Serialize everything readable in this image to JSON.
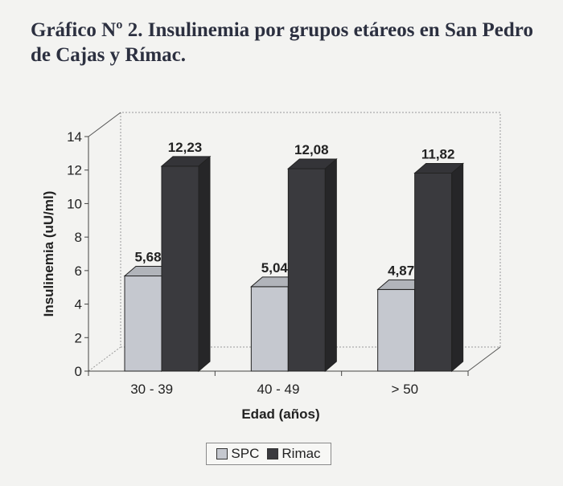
{
  "chart_data": {
    "type": "bar",
    "title_lines": [
      "Gráfico Nº 2. Insulinemia por grupos etáreos en San Pedro",
      "de Cajas y Rímac."
    ],
    "xlabel": "Edad (años)",
    "ylabel": "Insulinemia (uU/ml)",
    "categories": [
      "30 - 39",
      "40 - 49",
      "> 50"
    ],
    "series": [
      {
        "name": "SPC",
        "values": [
          5.68,
          5.04,
          4.87
        ],
        "labels": [
          "5,68",
          "5,04",
          "4,87"
        ],
        "color": "#c5c8cf"
      },
      {
        "name": "Rimac",
        "values": [
          12.23,
          12.08,
          11.82
        ],
        "labels": [
          "12,23",
          "12,08",
          "11,82"
        ],
        "color": "#3a3a3e"
      }
    ],
    "ylim": [
      0,
      14
    ],
    "yticks": [
      0,
      2,
      4,
      6,
      8,
      10,
      12,
      14
    ],
    "grid": false,
    "legend_position": "bottom-center",
    "three_d": true
  }
}
